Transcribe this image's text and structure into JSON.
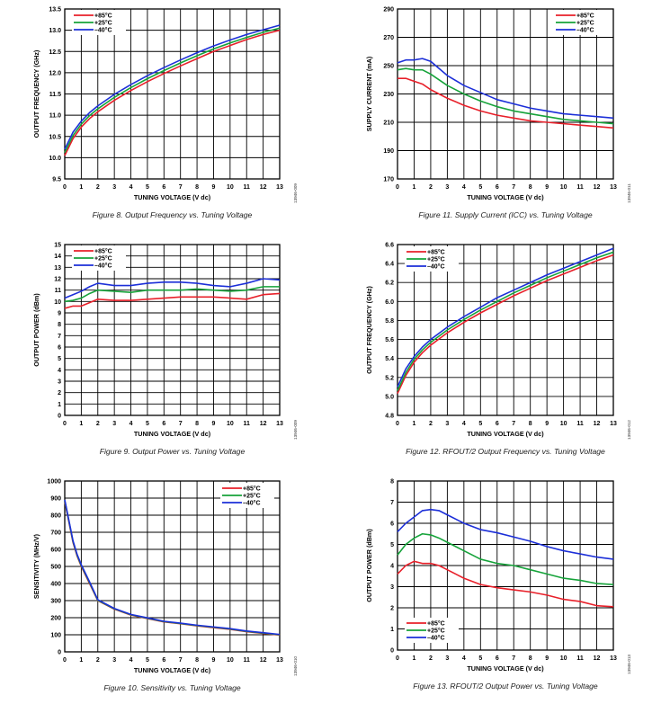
{
  "chart_data": [
    {
      "type": "line",
      "caption": "Figure 8. Output Frequency vs. Tuning Voltage",
      "figure_code": "13946-009",
      "xlabel": "TUNING VOLTAGE (V dc)",
      "ylabel": "OUTPUT FREQUENCY (GHz)",
      "xlim": [
        0,
        13
      ],
      "ylim": [
        9.5,
        13.5
      ],
      "xticks": [
        0,
        1,
        2,
        3,
        4,
        5,
        6,
        7,
        8,
        9,
        10,
        11,
        12,
        13
      ],
      "yticks": [
        9.5,
        10.0,
        10.5,
        11.0,
        11.5,
        12.0,
        12.5,
        13.0,
        13.5
      ],
      "ytick_decimals": 1,
      "grid": true,
      "legend_position": "top-left",
      "series": [
        {
          "name": "+85°C",
          "color": "#e8202a",
          "x": [
            0,
            0.5,
            1,
            1.5,
            2,
            3,
            4,
            5,
            6,
            7,
            8,
            9,
            10,
            11,
            12,
            13
          ],
          "y": [
            10.05,
            10.45,
            10.72,
            10.92,
            11.08,
            11.35,
            11.58,
            11.79,
            11.98,
            12.16,
            12.33,
            12.5,
            12.64,
            12.78,
            12.9,
            13.0
          ]
        },
        {
          "name": "+25°C",
          "color": "#16a33a",
          "x": [
            0,
            0.5,
            1,
            1.5,
            2,
            3,
            4,
            5,
            6,
            7,
            8,
            9,
            10,
            11,
            12,
            13
          ],
          "y": [
            10.12,
            10.52,
            10.79,
            10.99,
            11.15,
            11.42,
            11.65,
            11.86,
            12.05,
            12.23,
            12.4,
            12.56,
            12.7,
            12.83,
            12.95,
            13.05
          ]
        },
        {
          "name": "–40°C",
          "color": "#1c2fd8",
          "x": [
            0,
            0.5,
            1,
            1.5,
            2,
            3,
            4,
            5,
            6,
            7,
            8,
            9,
            10,
            11,
            12,
            13
          ],
          "y": [
            10.2,
            10.6,
            10.86,
            11.06,
            11.22,
            11.49,
            11.72,
            11.93,
            12.12,
            12.3,
            12.47,
            12.63,
            12.77,
            12.9,
            13.01,
            13.12
          ]
        }
      ]
    },
    {
      "type": "line",
      "caption": "Figure 11. Supply Current (ICC) vs. Tuning Voltage",
      "figure_code": "13946-011",
      "xlabel": "TUNING VOLTAGE (V dc)",
      "ylabel": "SUPPLY CURRENT (mA)",
      "xlim": [
        0,
        13
      ],
      "ylim": [
        170,
        290
      ],
      "xticks": [
        0,
        1,
        2,
        3,
        4,
        5,
        6,
        7,
        8,
        9,
        10,
        11,
        12,
        13
      ],
      "yticks": [
        170,
        190,
        210,
        230,
        250,
        270,
        290
      ],
      "ytick_decimals": 0,
      "grid": true,
      "legend_position": "top-right",
      "series": [
        {
          "name": "+85°C",
          "color": "#e8202a",
          "x": [
            0,
            0.5,
            1,
            1.5,
            2,
            3,
            4,
            5,
            6,
            7,
            8,
            9,
            10,
            11,
            12,
            13
          ],
          "y": [
            241,
            241,
            239,
            237,
            233,
            227,
            222,
            218,
            215,
            213,
            211,
            210,
            209,
            208,
            207,
            206
          ]
        },
        {
          "name": "+25°C",
          "color": "#16a33a",
          "x": [
            0,
            0.5,
            1,
            1.5,
            2,
            3,
            4,
            5,
            6,
            7,
            8,
            9,
            10,
            11,
            12,
            13
          ],
          "y": [
            247,
            248,
            247,
            247,
            244,
            236,
            230,
            225,
            221,
            218,
            216,
            214,
            212,
            211,
            210,
            209
          ]
        },
        {
          "name": "–40°C",
          "color": "#1c2fd8",
          "x": [
            0,
            0.5,
            1,
            1.5,
            2,
            3,
            4,
            5,
            6,
            7,
            8,
            9,
            10,
            11,
            12,
            13
          ],
          "y": [
            252,
            254,
            254,
            255,
            253,
            243,
            236,
            231,
            226,
            223,
            220,
            218,
            216,
            215,
            214,
            213
          ]
        }
      ]
    },
    {
      "type": "line",
      "caption": "Figure 9. Output Power vs. Tuning Voltage",
      "figure_code": "13946-009",
      "xlabel": "TUNING VOLTAGE (V dc)",
      "ylabel": "OUTPUT POWER (dBm)",
      "xlim": [
        0,
        13
      ],
      "ylim": [
        0,
        15
      ],
      "xticks": [
        0,
        1,
        2,
        3,
        4,
        5,
        6,
        7,
        8,
        9,
        10,
        11,
        12,
        13
      ],
      "yticks": [
        0,
        1,
        2,
        3,
        4,
        5,
        6,
        7,
        8,
        9,
        10,
        11,
        12,
        13,
        14,
        15
      ],
      "ytick_decimals": 0,
      "grid": true,
      "legend_position": "top-left",
      "series": [
        {
          "name": "+85°C",
          "color": "#e8202a",
          "x": [
            0,
            0.5,
            1,
            1.5,
            2,
            3,
            4,
            5,
            6,
            7,
            8,
            9,
            10,
            11,
            12,
            13
          ],
          "y": [
            9.4,
            9.6,
            9.6,
            9.9,
            10.2,
            10.1,
            10.1,
            10.2,
            10.3,
            10.4,
            10.4,
            10.4,
            10.3,
            10.2,
            10.6,
            10.7
          ]
        },
        {
          "name": "+25°C",
          "color": "#16a33a",
          "x": [
            0,
            0.5,
            1,
            1.5,
            2,
            3,
            4,
            5,
            6,
            7,
            8,
            9,
            10,
            11,
            12,
            13
          ],
          "y": [
            10.0,
            10.1,
            10.3,
            10.7,
            11.0,
            10.9,
            10.8,
            11.0,
            11.0,
            11.0,
            11.1,
            11.0,
            10.9,
            11.0,
            11.3,
            11.3
          ]
        },
        {
          "name": "–40°C",
          "color": "#1c2fd8",
          "x": [
            0,
            0.5,
            1,
            1.5,
            2,
            3,
            4,
            5,
            6,
            7,
            8,
            9,
            10,
            11,
            12,
            13
          ],
          "y": [
            10.3,
            10.6,
            10.9,
            11.3,
            11.6,
            11.4,
            11.4,
            11.6,
            11.7,
            11.7,
            11.6,
            11.4,
            11.3,
            11.6,
            12.0,
            11.9
          ]
        }
      ]
    },
    {
      "type": "line",
      "caption": "Figure 12. RFOUT/2 Output Frequency vs. Tuning Voltage",
      "figure_code": "13946-012",
      "xlabel": "TUNING VOLTAGE (V dc)",
      "ylabel": "OUTPUT FREQUENCY (GHz)",
      "xlim": [
        0,
        13
      ],
      "ylim": [
        4.8,
        6.6
      ],
      "xticks": [
        0,
        1,
        2,
        3,
        4,
        5,
        6,
        7,
        8,
        9,
        10,
        11,
        12,
        13
      ],
      "yticks": [
        4.8,
        5.0,
        5.2,
        5.4,
        5.6,
        5.8,
        6.0,
        6.2,
        6.4,
        6.6
      ],
      "ytick_decimals": 1,
      "grid": true,
      "legend_position": "top-left",
      "series": [
        {
          "name": "+85°C",
          "color": "#e8202a",
          "x": [
            0,
            0.5,
            1,
            1.5,
            2,
            3,
            4,
            5,
            6,
            7,
            8,
            9,
            10,
            11,
            12,
            13
          ],
          "y": [
            5.03,
            5.22,
            5.36,
            5.46,
            5.54,
            5.67,
            5.78,
            5.88,
            5.97,
            6.06,
            6.14,
            6.22,
            6.29,
            6.36,
            6.43,
            6.49
          ]
        },
        {
          "name": "+25°C",
          "color": "#16a33a",
          "x": [
            0,
            0.5,
            1,
            1.5,
            2,
            3,
            4,
            5,
            6,
            7,
            8,
            9,
            10,
            11,
            12,
            13
          ],
          "y": [
            5.06,
            5.25,
            5.39,
            5.49,
            5.57,
            5.7,
            5.81,
            5.91,
            6.0,
            6.09,
            6.17,
            6.25,
            6.32,
            6.39,
            6.46,
            6.52
          ]
        },
        {
          "name": "–40°C",
          "color": "#1c2fd8",
          "x": [
            0,
            0.5,
            1,
            1.5,
            2,
            3,
            4,
            5,
            6,
            7,
            8,
            9,
            10,
            11,
            12,
            13
          ],
          "y": [
            5.1,
            5.29,
            5.42,
            5.52,
            5.6,
            5.73,
            5.84,
            5.94,
            6.04,
            6.12,
            6.2,
            6.28,
            6.35,
            6.42,
            6.49,
            6.56
          ]
        }
      ]
    },
    {
      "type": "line",
      "caption": "Figure 10. Sensitivity vs. Tuning Voltage",
      "figure_code": "13946-010",
      "xlabel": "TUNING VOLTAGE (V dc)",
      "ylabel": "SENSITIVITY (MHz/V)",
      "xlim": [
        0,
        13
      ],
      "ylim": [
        0,
        1000
      ],
      "xticks": [
        0,
        1,
        2,
        3,
        4,
        5,
        6,
        7,
        8,
        9,
        10,
        11,
        12,
        13
      ],
      "yticks": [
        0,
        100,
        200,
        300,
        400,
        500,
        600,
        700,
        800,
        900,
        1000
      ],
      "ytick_decimals": 0,
      "grid": true,
      "legend_position": "top-right",
      "series": [
        {
          "name": "+85°C",
          "color": "#e8202a",
          "x": [
            0,
            0.25,
            0.5,
            0.75,
            1,
            1.5,
            2,
            3,
            4,
            5,
            6,
            7,
            8,
            9,
            10,
            11,
            12,
            13
          ],
          "y": [
            880,
            760,
            640,
            560,
            500,
            400,
            300,
            250,
            215,
            195,
            175,
            165,
            152,
            142,
            132,
            118,
            108,
            98
          ]
        },
        {
          "name": "+25°C",
          "color": "#16a33a",
          "x": [
            0,
            0.25,
            0.5,
            0.75,
            1,
            1.5,
            2,
            3,
            4,
            5,
            6,
            7,
            8,
            9,
            10,
            11,
            12,
            13
          ],
          "y": [
            885,
            765,
            645,
            565,
            505,
            405,
            302,
            252,
            217,
            197,
            177,
            166,
            154,
            144,
            134,
            120,
            110,
            100
          ]
        },
        {
          "name": "–40°C",
          "color": "#1c2fd8",
          "x": [
            0,
            0.25,
            0.5,
            0.75,
            1,
            1.5,
            2,
            3,
            4,
            5,
            6,
            7,
            8,
            9,
            10,
            11,
            12,
            13
          ],
          "y": [
            890,
            770,
            650,
            570,
            510,
            410,
            305,
            254,
            219,
            199,
            179,
            168,
            156,
            146,
            136,
            122,
            112,
            102
          ]
        }
      ]
    },
    {
      "type": "line",
      "caption": "Figure 13. RFOUT/2 Output Power vs. Tuning Voltage",
      "figure_code": "13946-013",
      "xlabel": "TUNING VOLTAGE (V dc)",
      "ylabel": "OUTPUT POWER (dBm)",
      "xlim": [
        0,
        13
      ],
      "ylim": [
        0,
        8
      ],
      "xticks": [
        0,
        1,
        2,
        3,
        4,
        5,
        6,
        7,
        8,
        9,
        10,
        11,
        12,
        13
      ],
      "yticks": [
        0,
        1,
        2,
        3,
        4,
        5,
        6,
        7,
        8
      ],
      "ytick_decimals": 0,
      "grid": true,
      "legend_position": "bottom-left",
      "series": [
        {
          "name": "+85°C",
          "color": "#e8202a",
          "x": [
            0,
            0.5,
            1,
            1.5,
            2,
            2.5,
            3,
            4,
            5,
            6,
            7,
            8,
            9,
            10,
            11,
            12,
            13
          ],
          "y": [
            3.6,
            4.0,
            4.2,
            4.1,
            4.1,
            4.0,
            3.8,
            3.4,
            3.1,
            2.95,
            2.85,
            2.75,
            2.6,
            2.4,
            2.3,
            2.1,
            2.05
          ]
        },
        {
          "name": "+25°C",
          "color": "#16a33a",
          "x": [
            0,
            0.5,
            1,
            1.5,
            2,
            2.5,
            3,
            4,
            5,
            6,
            7,
            8,
            9,
            10,
            11,
            12,
            13
          ],
          "y": [
            4.5,
            5.0,
            5.3,
            5.5,
            5.45,
            5.3,
            5.1,
            4.7,
            4.3,
            4.1,
            4.0,
            3.8,
            3.6,
            3.4,
            3.3,
            3.15,
            3.1
          ]
        },
        {
          "name": "–40°C",
          "color": "#1c2fd8",
          "x": [
            0,
            0.5,
            1,
            1.5,
            2,
            2.5,
            3,
            4,
            5,
            6,
            7,
            8,
            9,
            10,
            11,
            12,
            13
          ],
          "y": [
            5.6,
            6.0,
            6.3,
            6.6,
            6.65,
            6.6,
            6.4,
            6.0,
            5.7,
            5.55,
            5.35,
            5.15,
            4.9,
            4.7,
            4.55,
            4.4,
            4.3
          ]
        }
      ]
    }
  ]
}
